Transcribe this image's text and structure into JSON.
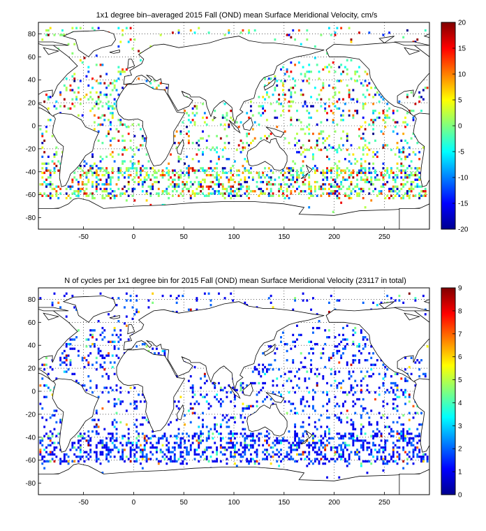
{
  "chart_data": [
    {
      "type": "heatmap",
      "title": "1x1 degree bin–averaged 2015 Fall (OND) mean Surface Meridional Velocity, cm/s",
      "xlabel": "",
      "ylabel": "",
      "xlim": [
        -95,
        295
      ],
      "ylim": [
        -90,
        90
      ],
      "x_ticks": [
        -50,
        0,
        50,
        100,
        150,
        200,
        250
      ],
      "y_ticks": [
        80,
        60,
        40,
        20,
        0,
        -20,
        -40,
        -60,
        -80
      ],
      "colorbar": {
        "min": -20,
        "max": 20,
        "ticks": [
          20,
          15,
          10,
          5,
          0,
          -5,
          -10,
          -15,
          -20
        ],
        "colormap": "jet"
      },
      "grid": true
    },
    {
      "type": "heatmap",
      "title": "N of cycles per 1x1 degree bin for 2015 Fall (OND) mean Surface Meridional Velocity (23117 in total)",
      "xlabel": "",
      "ylabel": "",
      "xlim": [
        -95,
        295
      ],
      "ylim": [
        -90,
        90
      ],
      "x_ticks": [
        -50,
        0,
        50,
        100,
        150,
        200,
        250
      ],
      "y_ticks": [
        80,
        60,
        40,
        20,
        0,
        -20,
        -40,
        -60,
        -80
      ],
      "colorbar": {
        "min": 0,
        "max": 9,
        "ticks": [
          9,
          8,
          7,
          6,
          5,
          4,
          3,
          2,
          1,
          0
        ],
        "colormap": "jet"
      },
      "grid": true
    }
  ]
}
